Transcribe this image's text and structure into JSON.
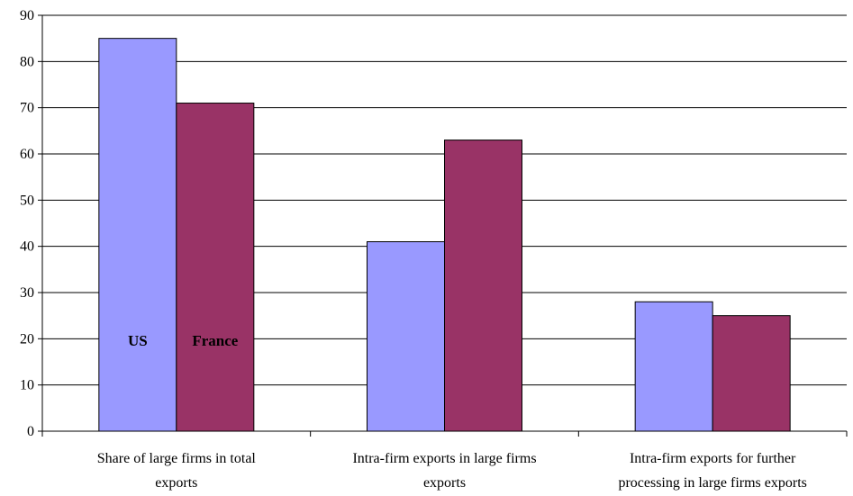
{
  "chart_data": {
    "type": "bar",
    "title": "",
    "xlabel": "",
    "ylabel": "",
    "categories": [
      [
        "Share of large firms in total",
        "exports"
      ],
      [
        "Intra-firm exports in large firms",
        "exports"
      ],
      [
        "Intra-firm exports for further",
        "processing in large firms exports"
      ]
    ],
    "series": [
      {
        "name": "US",
        "color": "#9999ff",
        "values": [
          85,
          41,
          28
        ]
      },
      {
        "name": "France",
        "color": "#993366",
        "values": [
          71,
          63,
          25
        ]
      }
    ],
    "ylim": [
      0,
      90
    ],
    "yticks": [
      "0",
      "10",
      "20",
      "30",
      "40",
      "50",
      "60",
      "70",
      "80",
      "90"
    ],
    "grid": true,
    "legend": "inside first category bars"
  }
}
